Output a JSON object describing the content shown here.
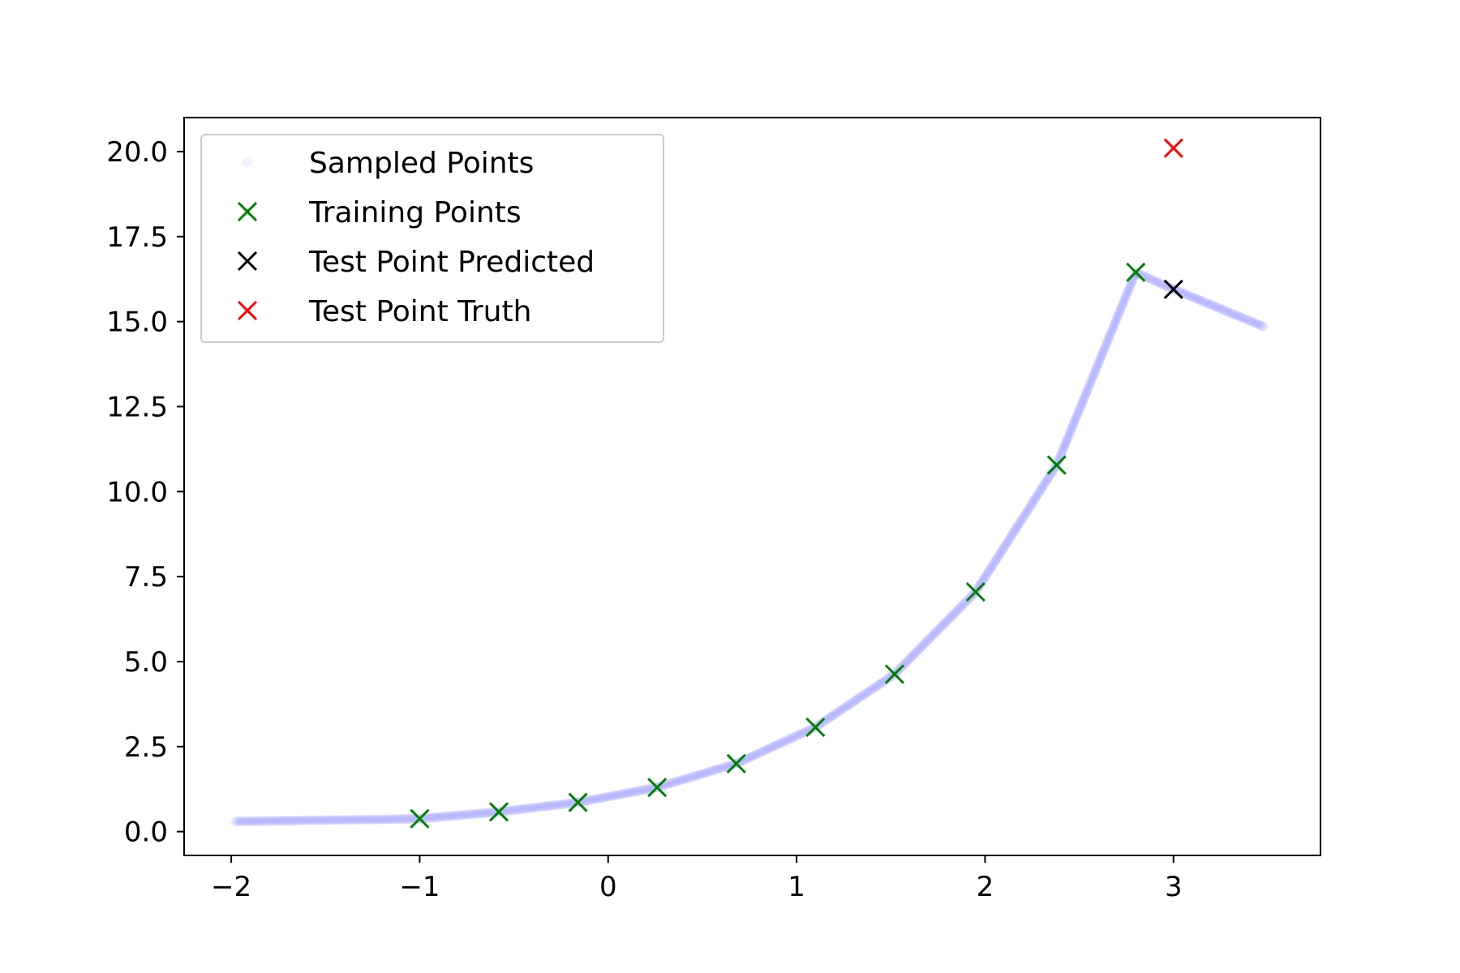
{
  "chart_data": {
    "type": "scatter",
    "title": "",
    "xlabel": "",
    "ylabel": "",
    "xlim": [
      -2.25,
      3.78
    ],
    "ylim": [
      -0.7,
      21.0
    ],
    "x_ticks": [
      -2,
      -1,
      0,
      1,
      2,
      3
    ],
    "x_tick_labels": [
      "−2",
      "−1",
      "0",
      "1",
      "2",
      "3"
    ],
    "y_ticks": [
      0.0,
      2.5,
      5.0,
      7.5,
      10.0,
      12.5,
      15.0,
      17.5,
      20.0
    ],
    "y_tick_labels": [
      "0.0",
      "2.5",
      "5.0",
      "7.5",
      "10.0",
      "12.5",
      "15.0",
      "17.5",
      "20.0"
    ],
    "grid": false,
    "legend_position": "top-left",
    "series": [
      {
        "name": "Sampled Points",
        "marker": "dot",
        "color": "#0000ff",
        "x": [
          -1.98,
          -1.6,
          -1.2,
          -1.0,
          -0.58,
          -0.16,
          0.26,
          0.68,
          1.1,
          1.52,
          1.95,
          2.38,
          2.8,
          3.0,
          3.48
        ],
        "y": [
          0.3,
          0.33,
          0.36,
          0.38,
          0.58,
          0.86,
          1.3,
          2.0,
          3.07,
          4.63,
          7.05,
          10.78,
          16.45,
          15.95,
          14.85
        ]
      },
      {
        "name": "Training Points",
        "marker": "x",
        "color": "#008000",
        "x": [
          -1.0,
          -0.58,
          -0.16,
          0.26,
          0.68,
          1.1,
          1.52,
          1.95,
          2.38,
          2.8
        ],
        "y": [
          0.38,
          0.58,
          0.86,
          1.3,
          2.0,
          3.07,
          4.63,
          7.05,
          10.78,
          16.45
        ]
      },
      {
        "name": "Test Point Predicted",
        "marker": "x",
        "color": "#000000",
        "x": [
          3.0
        ],
        "y": [
          15.95
        ]
      },
      {
        "name": "Test Point Truth",
        "marker": "x",
        "color": "#ff0000",
        "x": [
          3.0
        ],
        "y": [
          20.1
        ]
      }
    ]
  }
}
